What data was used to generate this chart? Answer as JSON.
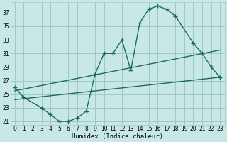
{
  "bg_color": "#c8e8e8",
  "grid_color": "#a0c8c8",
  "line_color": "#1a6b5a",
  "line_width": 1.0,
  "marker": "+",
  "marker_size": 4,
  "marker_ew": 1.0,
  "xlabel": "Humidex (Indice chaleur)",
  "xlabel_fontsize": 6.5,
  "tick_fontsize": 5.5,
  "ylim": [
    20.5,
    38.5
  ],
  "xlim": [
    -0.5,
    23.5
  ],
  "yticks": [
    21,
    23,
    25,
    27,
    29,
    31,
    33,
    35,
    37
  ],
  "xticks": [
    0,
    1,
    2,
    3,
    4,
    5,
    6,
    7,
    8,
    9,
    10,
    11,
    12,
    13,
    14,
    15,
    16,
    17,
    18,
    19,
    20,
    21,
    22,
    23
  ],
  "curve1_x": [
    0,
    1,
    3,
    4,
    5,
    6,
    7,
    8,
    9,
    10,
    11,
    12,
    13,
    14,
    15,
    16,
    17,
    18,
    20,
    21,
    22,
    23
  ],
  "curve1_y": [
    26,
    24.5,
    23,
    22,
    21,
    21,
    21.5,
    22.5,
    28,
    31,
    31,
    33,
    28.5,
    35.5,
    37.5,
    38,
    37.5,
    36.5,
    32.5,
    31,
    29,
    27.5
  ],
  "curve2_x": [
    0,
    23
  ],
  "curve2_y": [
    25.5,
    31.5
  ],
  "curve3_x": [
    0,
    23
  ],
  "curve3_y": [
    24.2,
    27.5
  ]
}
